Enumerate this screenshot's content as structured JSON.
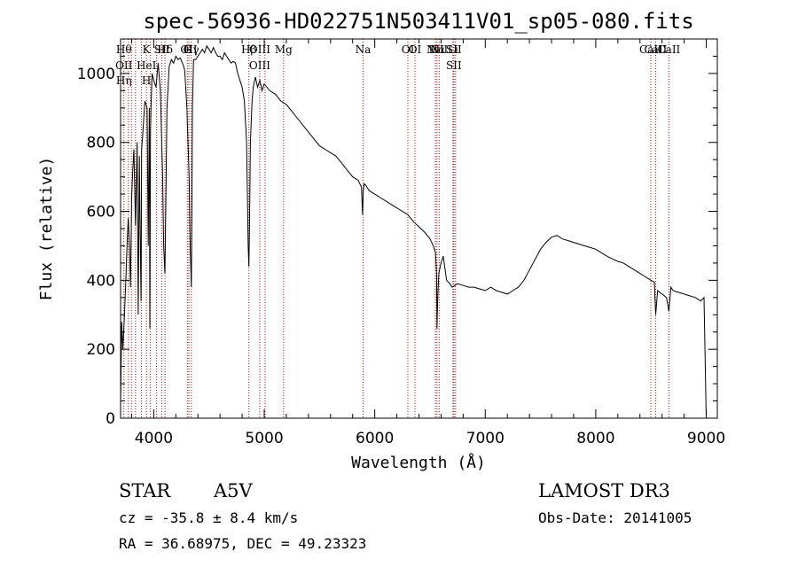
{
  "chart_data": {
    "type": "line",
    "title": "spec-56936-HD022751N503411V01_sp05-080.fits",
    "xlabel": "Wavelength (Å)",
    "ylabel": "Flux (relative)",
    "xlim": [
      3700,
      9100
    ],
    "ylim": [
      0,
      1100
    ],
    "xticks": [
      4000,
      5000,
      6000,
      7000,
      8000,
      9000
    ],
    "yticks": [
      0,
      200,
      400,
      600,
      800,
      1000
    ],
    "grid": false,
    "series": [
      {
        "x": [
          3700,
          3710,
          3720,
          3730,
          3740,
          3750,
          3760,
          3770,
          3780,
          3790,
          3800,
          3810,
          3820,
          3835,
          3850,
          3860,
          3870,
          3875,
          3885,
          3890,
          3900,
          3920,
          3940,
          3950,
          3960,
          3965,
          3970,
          3975,
          3985,
          4000,
          4020,
          4040,
          4060,
          4080,
          4090,
          4101,
          4110,
          4120,
          4140,
          4160,
          4180,
          4200,
          4220,
          4240,
          4260,
          4280,
          4300,
          4320,
          4330,
          4340,
          4345,
          4350,
          4360,
          4380,
          4400,
          4420,
          4440,
          4460,
          4480,
          4500,
          4520,
          4540,
          4560,
          4580,
          4600,
          4620,
          4640,
          4660,
          4680,
          4700,
          4720,
          4740,
          4760,
          4780,
          4800,
          4820,
          4840,
          4850,
          4855,
          4861,
          4867,
          4875,
          4890,
          4900,
          4920,
          4940,
          4960,
          4980,
          5000,
          5050,
          5100,
          5150,
          5200,
          5250,
          5300,
          5350,
          5400,
          5450,
          5500,
          5550,
          5600,
          5650,
          5700,
          5750,
          5800,
          5850,
          5880,
          5890,
          5896,
          5905,
          5920,
          5950,
          6000,
          6050,
          6100,
          6150,
          6200,
          6250,
          6300,
          6350,
          6400,
          6450,
          6500,
          6530,
          6550,
          6560,
          6563,
          6570,
          6580,
          6600,
          6620,
          6650,
          6680,
          6700,
          6750,
          6800,
          6850,
          6900,
          6950,
          7000,
          7050,
          7100,
          7150,
          7200,
          7250,
          7300,
          7350,
          7400,
          7450,
          7500,
          7550,
          7600,
          7650,
          7700,
          7750,
          7800,
          7850,
          7900,
          7950,
          8000,
          8050,
          8100,
          8150,
          8200,
          8250,
          8300,
          8350,
          8400,
          8450,
          8500,
          8530,
          8542,
          8560,
          8600,
          8640,
          8662,
          8680,
          8700,
          8750,
          8800,
          8850,
          8900,
          8950,
          8980,
          9000
        ],
        "y": [
          40,
          280,
          200,
          260,
          340,
          420,
          520,
          580,
          500,
          380,
          640,
          720,
          780,
          560,
          800,
          300,
          760,
          600,
          340,
          780,
          820,
          920,
          900,
          500,
          900,
          260,
          830,
          900,
          1000,
          980,
          960,
          1030,
          950,
          700,
          500,
          420,
          640,
          900,
          1020,
          1040,
          1030,
          1050,
          1040,
          1045,
          1030,
          1010,
          900,
          700,
          500,
          380,
          600,
          900,
          1040,
          1040,
          1050,
          1060,
          1070,
          1060,
          1080,
          1070,
          1060,
          1075,
          1060,
          1050,
          1050,
          1040,
          1060,
          1050,
          1040,
          1030,
          1035,
          1030,
          1000,
          980,
          960,
          920,
          800,
          600,
          500,
          440,
          560,
          800,
          920,
          960,
          990,
          960,
          980,
          950,
          970,
          950,
          940,
          920,
          910,
          890,
          870,
          850,
          830,
          810,
          790,
          780,
          770,
          760,
          740,
          720,
          700,
          690,
          670,
          590,
          660,
          680,
          675,
          660,
          650,
          640,
          630,
          620,
          610,
          600,
          590,
          570,
          555,
          540,
          520,
          500,
          480,
          420,
          260,
          350,
          420,
          450,
          470,
          400,
          390,
          380,
          390,
          385,
          380,
          380,
          375,
          370,
          380,
          370,
          365,
          360,
          370,
          380,
          400,
          430,
          460,
          490,
          510,
          525,
          530,
          520,
          515,
          510,
          505,
          500,
          495,
          490,
          480,
          470,
          462,
          455,
          450,
          440,
          430,
          420,
          410,
          400,
          395,
          300,
          370,
          360,
          350,
          310,
          380,
          370,
          365,
          360,
          355,
          350,
          340,
          350,
          0
        ]
      }
    ],
    "annotations": [
      {
        "x": 3730,
        "labels": [
          "Hθ",
          "OII",
          "Hη"
        ]
      },
      {
        "x": 3770,
        "labels": []
      },
      {
        "x": 3798,
        "labels": []
      },
      {
        "x": 3835,
        "labels": []
      },
      {
        "x": 3889,
        "labels": []
      },
      {
        "x": 3934,
        "labels": [
          "K",
          "HeI",
          "H"
        ]
      },
      {
        "x": 3970,
        "labels": []
      },
      {
        "x": 4026,
        "labels": []
      },
      {
        "x": 4072,
        "labels": [
          "SII"
        ]
      },
      {
        "x": 4102,
        "labels": [
          "Hδ"
        ]
      },
      {
        "x": 4304,
        "labels": [
          "G"
        ]
      },
      {
        "x": 4318,
        "labels": [
          "OII"
        ]
      },
      {
        "x": 4340,
        "labels": [
          "Hγ"
        ]
      },
      {
        "x": 4861,
        "labels": [
          "Hβ"
        ]
      },
      {
        "x": 4959,
        "labels": [
          "OIII",
          "OIII"
        ]
      },
      {
        "x": 5007,
        "labels": []
      },
      {
        "x": 5175,
        "labels": [
          "Mg"
        ]
      },
      {
        "x": 5894,
        "labels": [
          "Na"
        ]
      },
      {
        "x": 6300,
        "labels": [
          "OI"
        ]
      },
      {
        "x": 6364,
        "labels": [
          "OI"
        ]
      },
      {
        "x": 6548,
        "labels": [
          "NII"
        ]
      },
      {
        "x": 6563,
        "labels": [
          "Hα"
        ]
      },
      {
        "x": 6583,
        "labels": [
          "NII"
        ]
      },
      {
        "x": 6708,
        "labels": [
          "Li"
        ]
      },
      {
        "x": 6716,
        "labels": [
          "SII",
          "SII"
        ]
      },
      {
        "x": 6731,
        "labels": []
      },
      {
        "x": 8498,
        "labels": [
          "CaII"
        ]
      },
      {
        "x": 8542,
        "labels": [
          "CaII"
        ]
      },
      {
        "x": 8662,
        "labels": [
          "CaII"
        ]
      }
    ]
  },
  "info": {
    "object_class": "STAR",
    "subclass": "A5V",
    "survey": "LAMOST DR3",
    "cz": "cz = -35.8 ± 8.4 km/s",
    "obs_date": "Obs-Date: 20141005",
    "coords": "RA =  36.68975, DEC =  49.23323"
  },
  "colors": {
    "line_marker": "#cc0000",
    "spectrum": "#000000"
  }
}
